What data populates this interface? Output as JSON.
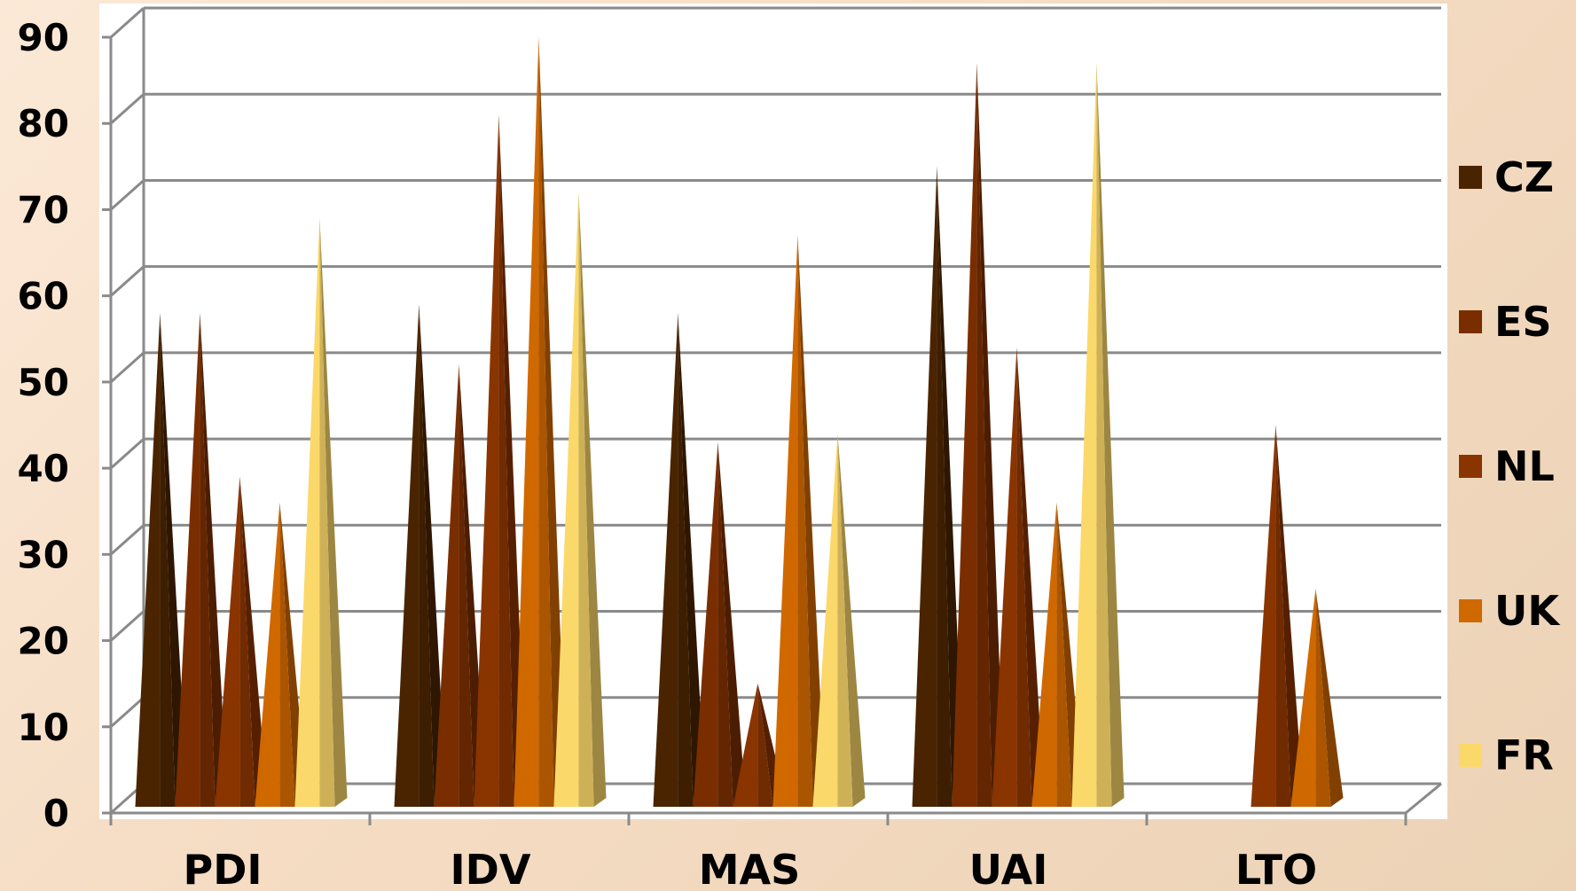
{
  "chart_data": {
    "type": "bar",
    "style": "3d-cone",
    "categories": [
      "PDI",
      "IDV",
      "MAS",
      "UAI",
      "LTO"
    ],
    "series": [
      {
        "name": "CZ",
        "color": "#4a2400",
        "values": [
          57,
          58,
          57,
          74,
          null
        ]
      },
      {
        "name": "ES",
        "color": "#7a2e00",
        "values": [
          57,
          51,
          42,
          86,
          null
        ]
      },
      {
        "name": "NL",
        "color": "#8a3400",
        "values": [
          38,
          80,
          14,
          53,
          44
        ]
      },
      {
        "name": "UK",
        "color": "#d06800",
        "values": [
          35,
          89,
          66,
          35,
          25
        ]
      },
      {
        "name": "FR",
        "color": "#fbd86a",
        "values": [
          68,
          71,
          43,
          86,
          null
        ]
      }
    ],
    "yticks": [
      "0",
      "10",
      "20",
      "30",
      "40",
      "50",
      "60",
      "70",
      "80",
      "90"
    ],
    "ylim": [
      0,
      90
    ],
    "grid": true,
    "legend_position": "right"
  }
}
